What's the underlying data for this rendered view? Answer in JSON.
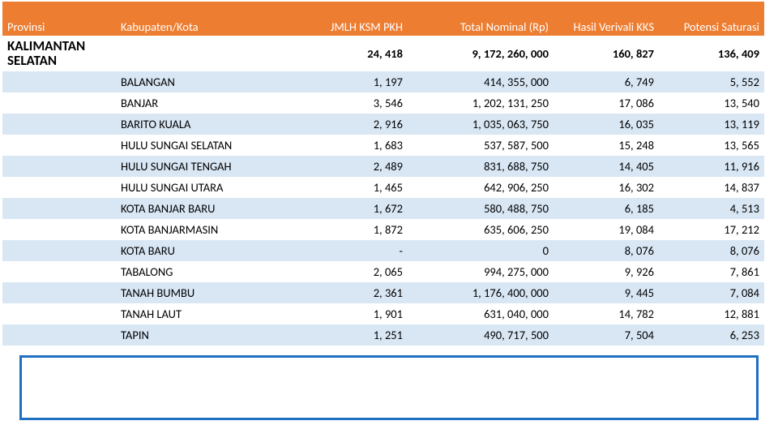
{
  "table": {
    "columns": [
      {
        "key": "provinsi",
        "label": "Provinsi",
        "align": "left"
      },
      {
        "key": "kabupaten",
        "label": "Kabupaten/Kota",
        "align": "left"
      },
      {
        "key": "jmlh",
        "label": "JMLH KSM PKH",
        "align": "right"
      },
      {
        "key": "nominal",
        "label": "Total Nominal (Rp)",
        "align": "right"
      },
      {
        "key": "verivali",
        "label": "Hasil Verivali KKS",
        "align": "right"
      },
      {
        "key": "saturasi",
        "label": "Potensi Saturasi",
        "align": "right"
      }
    ],
    "province_row": {
      "provinsi": "KALIMANTAN SELATAN",
      "jmlh": "24, 418",
      "nominal": "9, 172, 260, 000",
      "verivali": "160, 827",
      "saturasi": "136, 409"
    },
    "rows": [
      {
        "kabupaten": "BALANGAN",
        "jmlh": "1, 197",
        "nominal": "414, 355, 000",
        "verivali": "6, 749",
        "saturasi": "5, 552"
      },
      {
        "kabupaten": "BANJAR",
        "jmlh": "3, 546",
        "nominal": "1, 202, 131, 250",
        "verivali": "17, 086",
        "saturasi": "13, 540"
      },
      {
        "kabupaten": "BARITO KUALA",
        "jmlh": "2, 916",
        "nominal": "1, 035, 063, 750",
        "verivali": "16, 035",
        "saturasi": "13, 119"
      },
      {
        "kabupaten": "HULU SUNGAI SELATAN",
        "jmlh": "1, 683",
        "nominal": "537, 587, 500",
        "verivali": "15, 248",
        "saturasi": "13, 565"
      },
      {
        "kabupaten": "HULU SUNGAI TENGAH",
        "jmlh": "2, 489",
        "nominal": "831, 688, 750",
        "verivali": "14, 405",
        "saturasi": "11, 916"
      },
      {
        "kabupaten": "HULU SUNGAI UTARA",
        "jmlh": "1, 465",
        "nominal": "642, 906, 250",
        "verivali": "16, 302",
        "saturasi": "14, 837"
      },
      {
        "kabupaten": "KOTA BANJAR BARU",
        "jmlh": "1, 672",
        "nominal": "580, 488, 750",
        "verivali": "6, 185",
        "saturasi": "4, 513"
      },
      {
        "kabupaten": "KOTA BANJARMASIN",
        "jmlh": "1, 872",
        "nominal": "635, 606, 250",
        "verivali": "19, 084",
        "saturasi": "17, 212"
      },
      {
        "kabupaten": "KOTA BARU",
        "jmlh": "-",
        "nominal": "0",
        "verivali": "8, 076",
        "saturasi": "8, 076"
      },
      {
        "kabupaten": "TABALONG",
        "jmlh": "2, 065",
        "nominal": "994, 275, 000",
        "verivali": "9, 926",
        "saturasi": "7, 861"
      },
      {
        "kabupaten": "TANAH BUMBU",
        "jmlh": "2, 361",
        "nominal": "1, 176, 400, 000",
        "verivali": "9, 445",
        "saturasi": "7, 084"
      },
      {
        "kabupaten": "TANAH LAUT",
        "jmlh": "1, 901",
        "nominal": "631, 040, 000",
        "verivali": "14, 782",
        "saturasi": "12, 881"
      },
      {
        "kabupaten": "TAPIN",
        "jmlh": "1, 251",
        "nominal": "490, 717, 500",
        "verivali": "7, 504",
        "saturasi": "6, 253"
      }
    ],
    "styling": {
      "header_bg": "#ed7d31",
      "header_text": "#ffffff",
      "stripe_bg": "#d9e7f5",
      "frame_border": "#1f6fc2",
      "font_family": "Calibri",
      "font_size_body": 14.5,
      "font_size_province": 17
    }
  }
}
